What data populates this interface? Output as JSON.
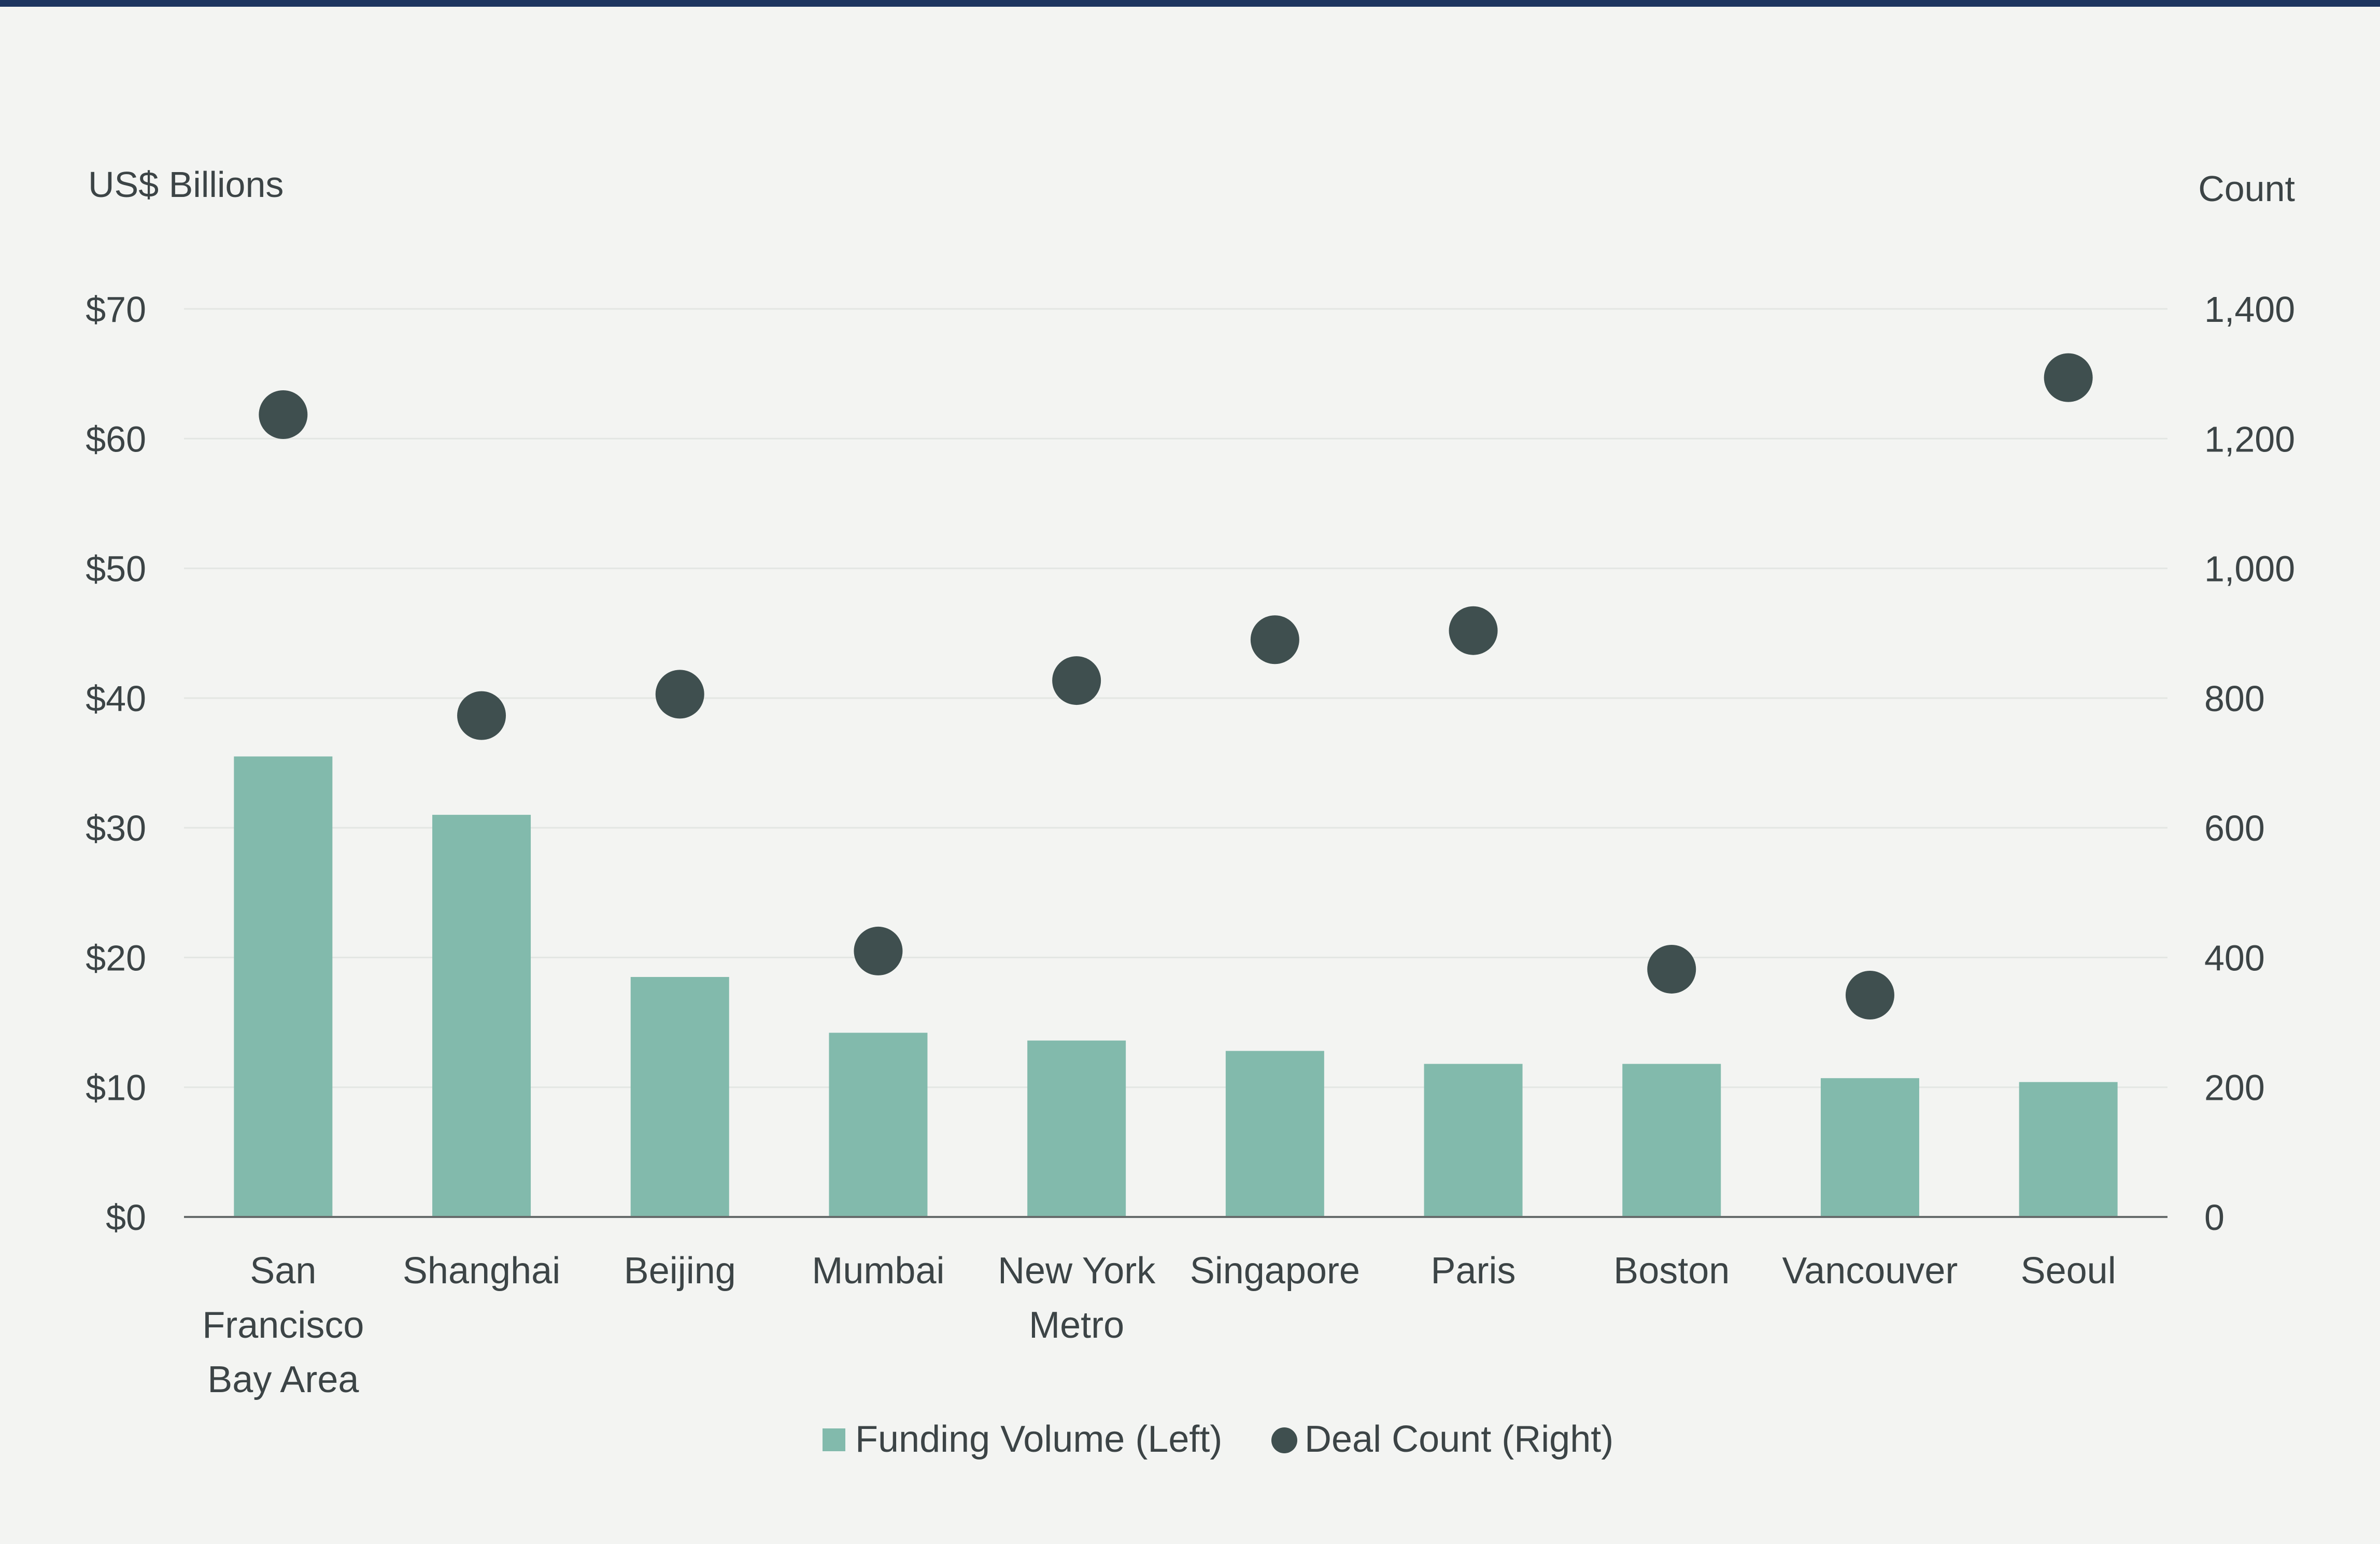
{
  "chart_data": {
    "type": "bar",
    "categories": [
      "San Francisco Bay Area",
      "Shanghai",
      "Beijing",
      "Mumbai",
      "New York Metro",
      "Singapore",
      "Paris",
      "Boston",
      "Vancouver",
      "Seoul"
    ],
    "category_lines": [
      [
        "San",
        "Francisco",
        "Bay Area"
      ],
      [
        "Shanghai"
      ],
      [
        "Beijing"
      ],
      [
        "Mumbai"
      ],
      [
        "New York",
        "Metro"
      ],
      [
        "Singapore"
      ],
      [
        "Paris"
      ],
      [
        "Boston"
      ],
      [
        "Vancouver"
      ],
      [
        "Seoul"
      ]
    ],
    "series": [
      {
        "name": "Funding Volume (Left)",
        "type": "bar",
        "axis": "left",
        "values": [
          35.5,
          31.0,
          18.5,
          14.2,
          13.6,
          12.8,
          11.8,
          11.8,
          10.7,
          10.4
        ]
      },
      {
        "name": "Deal Count (Right)",
        "type": "scatter",
        "axis": "right",
        "values": [
          1237,
          773,
          806,
          410,
          827,
          890,
          904,
          382,
          342,
          1294
        ]
      }
    ],
    "ylabel_left": "US$ Billions",
    "ylabel_right": "Count",
    "ylim_left": [
      0,
      70
    ],
    "ylim_right": [
      0,
      1400
    ],
    "yticks_left": [
      "$0",
      "$10",
      "$20",
      "$30",
      "$40",
      "$50",
      "$60",
      "$70"
    ],
    "yticks_right": [
      "0",
      "200",
      "400",
      "600",
      "800",
      "1,000",
      "1,200",
      "1,400"
    ],
    "grid": true,
    "legend_position": "bottom-center",
    "colors": {
      "bar": "#82baac",
      "dot": "#3f4f4f",
      "text": "#3c4446",
      "grid": "#e3e6e3",
      "axis": "#666b6b",
      "top_rule": "#1d3560",
      "background": "#f3f4f2"
    }
  }
}
